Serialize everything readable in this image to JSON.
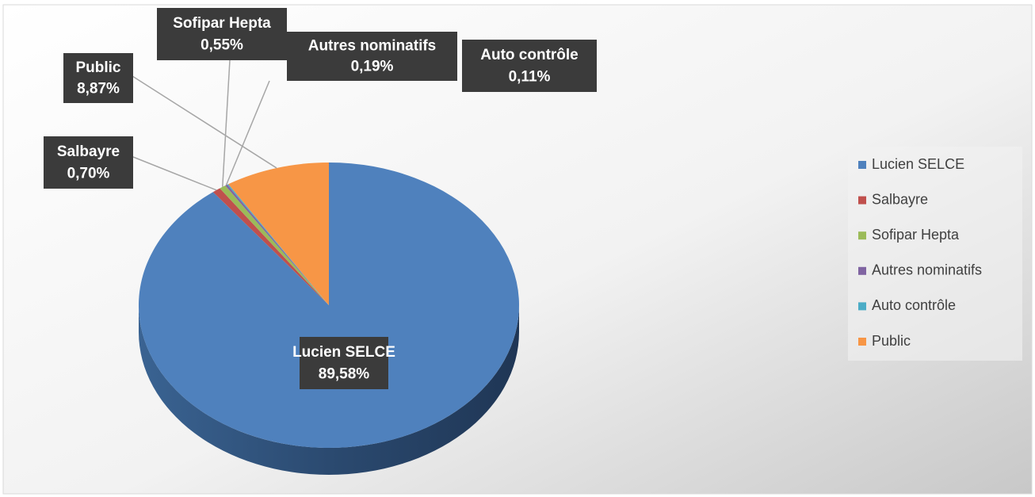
{
  "chart_data": {
    "type": "pie",
    "categories": [
      "Lucien SELCE",
      "Salbayre",
      "Sofipar Hepta",
      "Autres nominatifs",
      "Auto contrôle",
      "Public"
    ],
    "values": [
      89.58,
      0.7,
      0.55,
      0.19,
      0.11,
      8.87
    ],
    "value_labels": [
      "89,58%",
      "0,70%",
      "0,55%",
      "0,19%",
      "0,11%",
      "8,87%"
    ],
    "colors": [
      "#4f81bd",
      "#c0504d",
      "#9bbb59",
      "#8064a2",
      "#4bacc6",
      "#f79646"
    ],
    "legend": "right"
  }
}
